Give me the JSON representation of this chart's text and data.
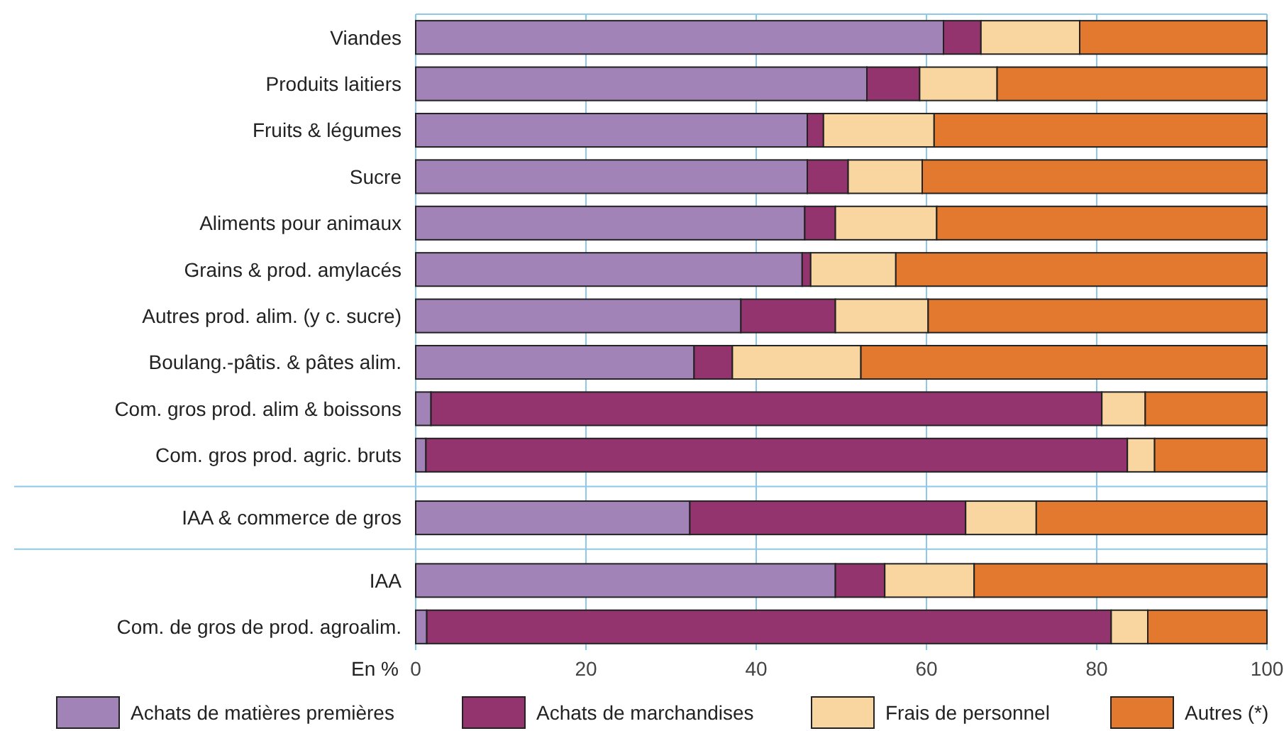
{
  "chart_data": {
    "type": "bar",
    "orientation": "horizontal",
    "stacked": true,
    "xlabel": "En %",
    "categories": [
      "Viandes",
      "Produits laitiers",
      "Fruits & légumes",
      "Sucre",
      "Aliments pour animaux",
      "Grains & prod. amylacés",
      "Autres prod. alim. (y c. sucre)",
      "Boulang.-pâtis. & pâtes alim.",
      "Com. gros prod. alim & boissons",
      "Com. gros prod. agric. bruts",
      null,
      "IAA & commerce de gros",
      null,
      "IAA",
      "Com. de gros de prod. agroalim."
    ],
    "series": [
      {
        "name": "Achats de matières premières",
        "color": "#a283b8",
        "values": [
          62,
          53,
          46,
          46,
          45.7,
          45.4,
          38.2,
          32.7,
          1.8,
          1.2,
          null,
          32.2,
          null,
          49.3,
          1.3
        ]
      },
      {
        "name": "Achats de marchandises",
        "color": "#93346e",
        "values": [
          4.4,
          6.2,
          1.9,
          4.8,
          3.6,
          1,
          11.1,
          4.5,
          78.8,
          82.4,
          null,
          32.4,
          null,
          5.8,
          80.4
        ]
      },
      {
        "name": "Frais de personnel",
        "color": "#f9d5a0",
        "values": [
          11.6,
          9.1,
          13,
          8.7,
          11.9,
          10,
          10.9,
          15.1,
          5.1,
          3.2,
          null,
          8.3,
          null,
          10.5,
          4.3
        ]
      },
      {
        "name": "Autres (*)",
        "color": "#e2792f",
        "values": [
          22,
          31.7,
          39.1,
          40.5,
          38.8,
          43.6,
          39.8,
          47.7,
          14.3,
          13.2,
          null,
          27.1,
          null,
          34.4,
          14
        ]
      }
    ],
    "xlim": [
      0,
      100
    ],
    "xticks": [
      0,
      20,
      40,
      60,
      80,
      100
    ],
    "grid": true,
    "legend": "bottom"
  }
}
